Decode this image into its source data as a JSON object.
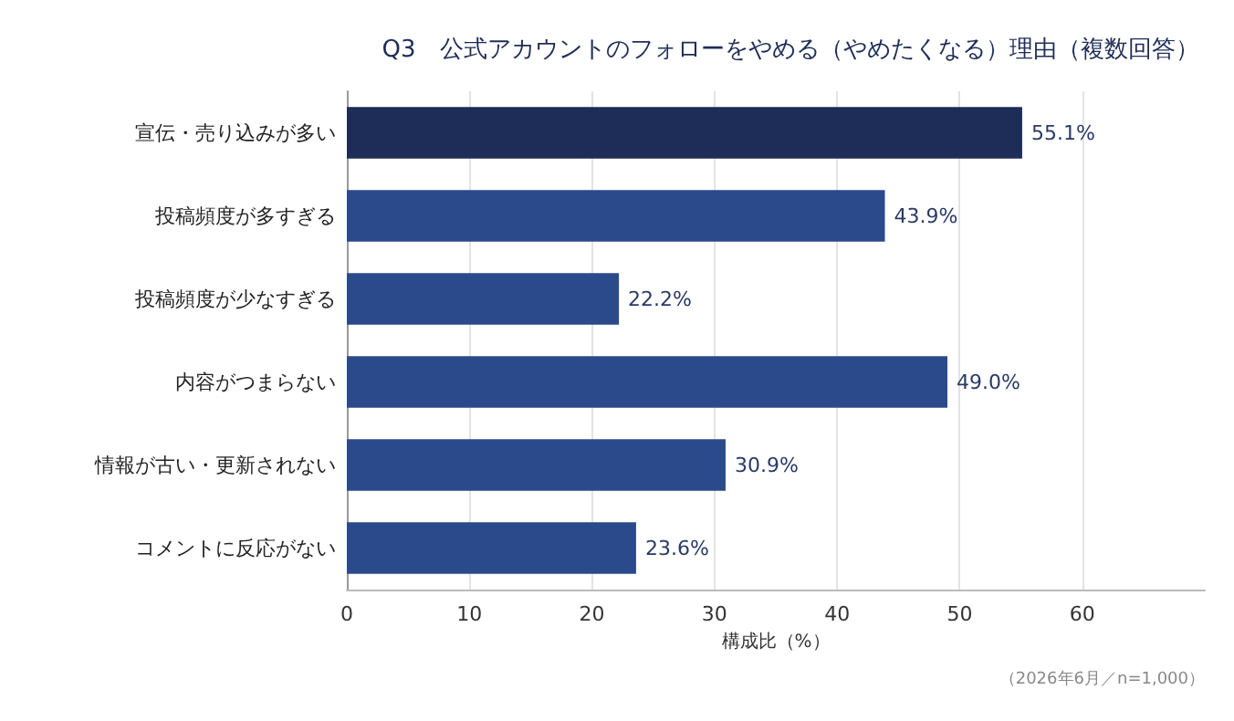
{
  "chart_data": {
    "type": "bar",
    "orientation": "horizontal",
    "title": "Q3　公式アカウントのフォローをやめる（やめたくなる）理由（複数回答）",
    "xlabel": "構成比（%）",
    "categories": [
      "宣伝・売り込みが多い",
      "投稿頻度が多すぎる",
      "投稿頻度が少なすぎる",
      "内容がつまらない",
      "情報が古い・更新されない",
      "コメントに反応がない"
    ],
    "values": [
      55.1,
      43.9,
      22.2,
      49.0,
      30.9,
      23.6
    ],
    "value_labels": [
      "55.1%",
      "43.9%",
      "22.2%",
      "49.0%",
      "30.9%",
      "23.6%"
    ],
    "colors": [
      "#1e2d57",
      "#2b4a8b",
      "#2b4a8b",
      "#2b4a8b",
      "#2b4a8b",
      "#2b4a8b"
    ],
    "xlim": [
      0,
      70
    ],
    "xticks": [
      0,
      10,
      20,
      30,
      40,
      50,
      60
    ],
    "grid": "x",
    "annotations": [
      "（2026年6月／n=1,000）"
    ]
  }
}
